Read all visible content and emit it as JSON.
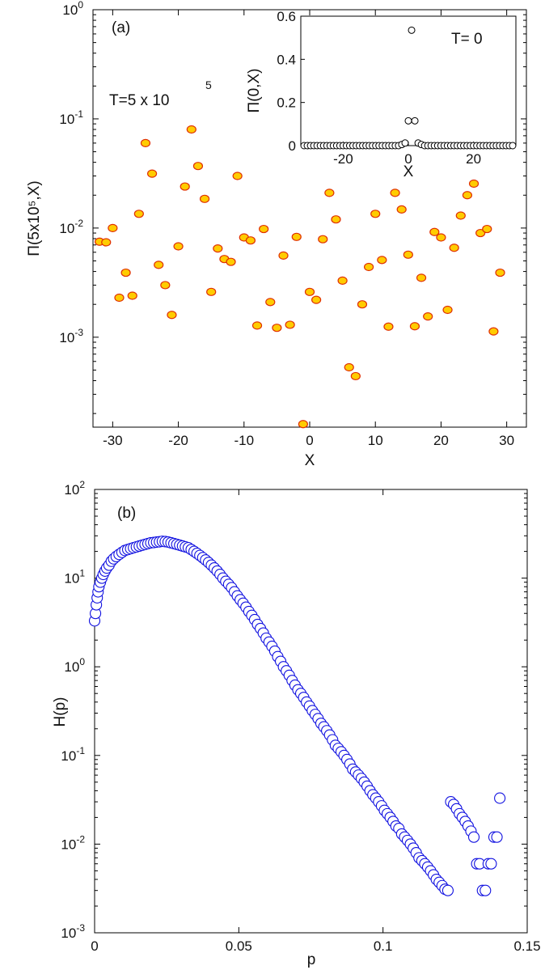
{
  "chart_data": [
    {
      "panel": "(a)",
      "type": "scatter",
      "scale_y": "log",
      "xlabel": "X",
      "ylabel": "Π(5x10⁵,X)",
      "annotation": {
        "text": "T=5 x 10",
        "exponent": "5"
      },
      "xlim": [
        -33,
        33
      ],
      "ylim": [
        0.00015,
        1
      ],
      "xticks": [
        -30,
        -20,
        -10,
        0,
        10,
        20,
        30
      ],
      "yticks": [
        {
          "value": 0.001,
          "mantissa": "10",
          "exponent": "-3"
        },
        {
          "value": 0.01,
          "mantissa": "10",
          "exponent": "-2"
        },
        {
          "value": 0.1,
          "mantissa": "10",
          "exponent": "-1"
        },
        {
          "value": 1,
          "mantissa": "10",
          "exponent": "0"
        }
      ],
      "marker": {
        "face": "#ffcc00",
        "edge": "#e03000"
      },
      "points": [
        [
          -32,
          0.0075
        ],
        [
          -31,
          0.0074
        ],
        [
          -30,
          0.01
        ],
        [
          -29,
          0.0023
        ],
        [
          -28,
          0.0039
        ],
        [
          -27,
          0.0024
        ],
        [
          -26,
          0.0135
        ],
        [
          -25,
          0.06
        ],
        [
          -24,
          0.0315
        ],
        [
          -23,
          0.0046
        ],
        [
          -22,
          0.003
        ],
        [
          -21,
          0.0016
        ],
        [
          -20,
          0.0068
        ],
        [
          -19,
          0.024
        ],
        [
          -18,
          0.08
        ],
        [
          -17,
          0.037
        ],
        [
          -16,
          0.0185
        ],
        [
          -15,
          0.0026
        ],
        [
          -14,
          0.0065
        ],
        [
          -13,
          0.0052
        ],
        [
          -12,
          0.0049
        ],
        [
          -11,
          0.03
        ],
        [
          -10,
          0.0082
        ],
        [
          -9,
          0.0077
        ],
        [
          -8,
          0.00128
        ],
        [
          -7,
          0.0098
        ],
        [
          -6,
          0.0021
        ],
        [
          -5,
          0.00122
        ],
        [
          -4,
          0.0056
        ],
        [
          -3,
          0.0013
        ],
        [
          -2,
          0.0083
        ],
        [
          -1,
          0.00016
        ],
        [
          0,
          0.0026
        ],
        [
          1,
          0.0022
        ],
        [
          2,
          0.0079
        ],
        [
          3,
          0.021
        ],
        [
          4,
          0.012
        ],
        [
          5,
          0.0033
        ],
        [
          6,
          0.00053
        ],
        [
          7,
          0.00044
        ],
        [
          8,
          0.002
        ],
        [
          9,
          0.0044
        ],
        [
          10,
          0.0135
        ],
        [
          11,
          0.0051
        ],
        [
          12,
          0.00125
        ],
        [
          13,
          0.021
        ],
        [
          14,
          0.0148
        ],
        [
          15,
          0.0057
        ],
        [
          16,
          0.00126
        ],
        [
          17,
          0.0035
        ],
        [
          18,
          0.00155
        ],
        [
          19,
          0.0092
        ],
        [
          20,
          0.0082
        ],
        [
          21,
          0.00178
        ],
        [
          22,
          0.0066
        ],
        [
          23,
          0.013
        ],
        [
          24,
          0.02
        ],
        [
          25,
          0.0255
        ],
        [
          26,
          0.009
        ],
        [
          27,
          0.0098
        ],
        [
          28,
          0.00113
        ],
        [
          29,
          0.0039
        ]
      ],
      "inset": {
        "type": "scatter",
        "xlabel": "X",
        "ylabel": "Π(0,X)",
        "annotation": "T= 0",
        "xlim": [
          -33,
          33
        ],
        "ylim": [
          0,
          0.6
        ],
        "xticks": [
          -20,
          0,
          20
        ],
        "yticks": [
          0,
          0.2,
          0.4,
          0.6
        ],
        "ytick_labels": [
          "0",
          "0.2",
          "0.4",
          "0.6"
        ],
        "marker": {
          "face": "#ffffff",
          "edge": "#000000"
        },
        "points": [
          [
            -32,
            0
          ],
          [
            -31,
            0
          ],
          [
            -30,
            0
          ],
          [
            -29,
            0
          ],
          [
            -28,
            0
          ],
          [
            -27,
            0
          ],
          [
            -26,
            0
          ],
          [
            -25,
            0
          ],
          [
            -24,
            0
          ],
          [
            -23,
            0
          ],
          [
            -22,
            0
          ],
          [
            -21,
            0
          ],
          [
            -20,
            0
          ],
          [
            -19,
            0
          ],
          [
            -18,
            0
          ],
          [
            -17,
            0
          ],
          [
            -16,
            0
          ],
          [
            -15,
            0
          ],
          [
            -14,
            0
          ],
          [
            -13,
            0
          ],
          [
            -12,
            0
          ],
          [
            -11,
            0
          ],
          [
            -10,
            0
          ],
          [
            -9,
            0
          ],
          [
            -8,
            0
          ],
          [
            -7,
            0
          ],
          [
            -6,
            0
          ],
          [
            -5,
            0
          ],
          [
            -4,
            0
          ],
          [
            -3,
            0
          ],
          [
            -2,
            0.005
          ],
          [
            -1,
            0.012
          ],
          [
            0,
            0.115
          ],
          [
            1,
            0.535
          ],
          [
            2,
            0.115
          ],
          [
            3,
            0.012
          ],
          [
            4,
            0.005
          ],
          [
            5,
            0
          ],
          [
            6,
            0
          ],
          [
            7,
            0
          ],
          [
            8,
            0
          ],
          [
            9,
            0
          ],
          [
            10,
            0
          ],
          [
            11,
            0
          ],
          [
            12,
            0
          ],
          [
            13,
            0
          ],
          [
            14,
            0
          ],
          [
            15,
            0
          ],
          [
            16,
            0
          ],
          [
            17,
            0
          ],
          [
            18,
            0
          ],
          [
            19,
            0
          ],
          [
            20,
            0
          ],
          [
            21,
            0
          ],
          [
            22,
            0
          ],
          [
            23,
            0
          ],
          [
            24,
            0
          ],
          [
            25,
            0
          ],
          [
            26,
            0
          ],
          [
            27,
            0
          ],
          [
            28,
            0
          ],
          [
            29,
            0
          ],
          [
            30,
            0
          ],
          [
            31,
            0
          ],
          [
            32,
            0
          ]
        ]
      }
    },
    {
      "panel": "(b)",
      "type": "scatter",
      "scale_y": "log",
      "xlabel": "p",
      "ylabel": "H(p)",
      "xlim": [
        0,
        0.15
      ],
      "ylim": [
        0.001,
        100
      ],
      "xticks": [
        0,
        0.05,
        0.1,
        0.15
      ],
      "xtick_labels": [
        "0",
        "0.05",
        "0.1",
        "0.15"
      ],
      "yticks": [
        {
          "value": 0.001,
          "mantissa": "10",
          "exponent": "-3"
        },
        {
          "value": 0.01,
          "mantissa": "10",
          "exponent": "-2"
        },
        {
          "value": 0.1,
          "mantissa": "10",
          "exponent": "-1"
        },
        {
          "value": 1,
          "mantissa": "10",
          "exponent": "0"
        },
        {
          "value": 10,
          "mantissa": "10",
          "exponent": "1"
        },
        {
          "value": 100,
          "mantissa": "10",
          "exponent": "2"
        }
      ],
      "marker": {
        "face": "#ffffff",
        "edge": "#1010e0"
      },
      "points": [
        [
          0.0,
          3.3
        ],
        [
          0.0003,
          4.0
        ],
        [
          0.0006,
          5.0
        ],
        [
          0.0009,
          6.0
        ],
        [
          0.0012,
          7.0
        ],
        [
          0.0015,
          8.0
        ],
        [
          0.002,
          9.0
        ],
        [
          0.0025,
          10.0
        ],
        [
          0.003,
          11.0
        ],
        [
          0.0036,
          12.0
        ],
        [
          0.0042,
          13.0
        ],
        [
          0.005,
          14.0
        ],
        [
          0.0058,
          15.5
        ],
        [
          0.0066,
          16.5
        ],
        [
          0.0075,
          17.5
        ],
        [
          0.0085,
          18.5
        ],
        [
          0.0095,
          19.5
        ],
        [
          0.0105,
          20.5
        ],
        [
          0.0115,
          21.0
        ],
        [
          0.0125,
          21.5
        ],
        [
          0.0135,
          22.0
        ],
        [
          0.0145,
          22.5
        ],
        [
          0.0155,
          23.0
        ],
        [
          0.0165,
          23.5
        ],
        [
          0.0175,
          24.0
        ],
        [
          0.0185,
          24.5
        ],
        [
          0.0195,
          25.0
        ],
        [
          0.0205,
          25.2
        ],
        [
          0.0215,
          25.5
        ],
        [
          0.0225,
          25.7
        ],
        [
          0.0235,
          26.0
        ],
        [
          0.0245,
          25.8
        ],
        [
          0.0255,
          25.5
        ],
        [
          0.0265,
          25.0
        ],
        [
          0.0275,
          24.5
        ],
        [
          0.0285,
          24.0
        ],
        [
          0.0295,
          23.5
        ],
        [
          0.0305,
          23.0
        ],
        [
          0.0315,
          22.5
        ],
        [
          0.0325,
          22.0
        ],
        [
          0.0335,
          21.0
        ],
        [
          0.0345,
          20.0
        ],
        [
          0.0355,
          19.0
        ],
        [
          0.0365,
          18.0
        ],
        [
          0.0375,
          17.0
        ],
        [
          0.0385,
          16.0
        ],
        [
          0.0395,
          15.0
        ],
        [
          0.0405,
          14.0
        ],
        [
          0.0415,
          13.0
        ],
        [
          0.0425,
          12.0
        ],
        [
          0.0435,
          11.0
        ],
        [
          0.0445,
          10.0
        ],
        [
          0.0455,
          9.2
        ],
        [
          0.0465,
          8.5
        ],
        [
          0.0475,
          7.8
        ],
        [
          0.0485,
          7.0
        ],
        [
          0.0495,
          6.3
        ],
        [
          0.0505,
          5.7
        ],
        [
          0.0515,
          5.2
        ],
        [
          0.0525,
          4.7
        ],
        [
          0.0535,
          4.2
        ],
        [
          0.0545,
          3.8
        ],
        [
          0.0555,
          3.4
        ],
        [
          0.0565,
          3.0
        ],
        [
          0.0575,
          2.7
        ],
        [
          0.0585,
          2.4
        ],
        [
          0.0595,
          2.1
        ],
        [
          0.0605,
          1.9
        ],
        [
          0.0615,
          1.7
        ],
        [
          0.0625,
          1.5
        ],
        [
          0.0635,
          1.3
        ],
        [
          0.0645,
          1.15
        ],
        [
          0.0655,
          1.0
        ],
        [
          0.0665,
          0.9
        ],
        [
          0.0675,
          0.8
        ],
        [
          0.0685,
          0.7
        ],
        [
          0.0695,
          0.62
        ],
        [
          0.0705,
          0.55
        ],
        [
          0.0715,
          0.5
        ],
        [
          0.0725,
          0.45
        ],
        [
          0.0735,
          0.4
        ],
        [
          0.0745,
          0.36
        ],
        [
          0.0755,
          0.32
        ],
        [
          0.0765,
          0.29
        ],
        [
          0.0775,
          0.26
        ],
        [
          0.0785,
          0.23
        ],
        [
          0.0795,
          0.21
        ],
        [
          0.0805,
          0.19
        ],
        [
          0.0815,
          0.17
        ],
        [
          0.0825,
          0.15
        ],
        [
          0.0835,
          0.13
        ],
        [
          0.0845,
          0.12
        ],
        [
          0.0855,
          0.11
        ],
        [
          0.0865,
          0.1
        ],
        [
          0.0875,
          0.09
        ],
        [
          0.0885,
          0.08
        ],
        [
          0.0895,
          0.07
        ],
        [
          0.0905,
          0.065
        ],
        [
          0.0915,
          0.06
        ],
        [
          0.0925,
          0.055
        ],
        [
          0.0935,
          0.05
        ],
        [
          0.0945,
          0.045
        ],
        [
          0.0955,
          0.04
        ],
        [
          0.0965,
          0.036
        ],
        [
          0.0975,
          0.033
        ],
        [
          0.0985,
          0.03
        ],
        [
          0.0995,
          0.027
        ],
        [
          0.1005,
          0.024
        ],
        [
          0.1015,
          0.022
        ],
        [
          0.1025,
          0.02
        ],
        [
          0.1035,
          0.018
        ],
        [
          0.1045,
          0.016
        ],
        [
          0.1055,
          0.015
        ],
        [
          0.1065,
          0.013
        ],
        [
          0.1075,
          0.012
        ],
        [
          0.1085,
          0.011
        ],
        [
          0.1095,
          0.01
        ],
        [
          0.1105,
          0.009
        ],
        [
          0.1115,
          0.008
        ],
        [
          0.1125,
          0.007
        ],
        [
          0.1135,
          0.0065
        ],
        [
          0.1145,
          0.006
        ],
        [
          0.1155,
          0.0055
        ],
        [
          0.1165,
          0.005
        ],
        [
          0.1175,
          0.0045
        ],
        [
          0.1185,
          0.004
        ],
        [
          0.1195,
          0.0037
        ],
        [
          0.1205,
          0.0034
        ],
        [
          0.1215,
          0.0031
        ],
        [
          0.1225,
          0.003
        ],
        [
          0.1235,
          0.03
        ],
        [
          0.1245,
          0.028
        ],
        [
          0.1255,
          0.025
        ],
        [
          0.1265,
          0.022
        ],
        [
          0.1275,
          0.02
        ],
        [
          0.1285,
          0.018
        ],
        [
          0.1295,
          0.016
        ],
        [
          0.1305,
          0.014
        ],
        [
          0.1315,
          0.012
        ],
        [
          0.1325,
          0.006
        ],
        [
          0.1335,
          0.006
        ],
        [
          0.1345,
          0.003
        ],
        [
          0.1355,
          0.003
        ],
        [
          0.1365,
          0.006
        ],
        [
          0.1375,
          0.006
        ],
        [
          0.1385,
          0.012
        ],
        [
          0.1395,
          0.012
        ],
        [
          0.1405,
          0.033
        ]
      ]
    }
  ]
}
